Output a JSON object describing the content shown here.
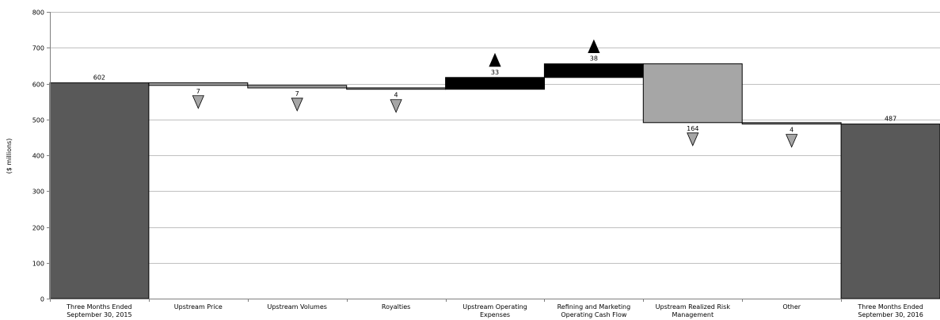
{
  "chart_data": {
    "type": "bar",
    "subtype": "waterfall",
    "title": "",
    "xlabel": "",
    "ylabel": "($ millions)",
    "ylim": [
      0,
      800
    ],
    "yticks": [
      0,
      100,
      200,
      300,
      400,
      500,
      600,
      700,
      800
    ],
    "grid": true,
    "legend": "none",
    "categories": [
      [
        "Three Months Ended",
        "September 30, 2015"
      ],
      [
        "Upstream Price"
      ],
      [
        "Upstream Volumes"
      ],
      [
        "Royalties"
      ],
      [
        "Upstream Operating",
        "Expenses"
      ],
      [
        "Refining and Marketing",
        "Operating Cash Flow"
      ],
      [
        "Upstream Realized Risk",
        "Management"
      ],
      [
        "Other"
      ],
      [
        "Three Months Ended",
        "September 30, 2016"
      ]
    ],
    "bars": [
      {
        "kind": "total",
        "start": 0,
        "end": 602,
        "label": "602",
        "indicator": "none"
      },
      {
        "kind": "change",
        "start": 602,
        "end": 595,
        "label": "7",
        "indicator": "down"
      },
      {
        "kind": "change",
        "start": 595,
        "end": 588,
        "label": "7",
        "indicator": "down"
      },
      {
        "kind": "change",
        "start": 588,
        "end": 584,
        "label": "4",
        "indicator": "down"
      },
      {
        "kind": "change",
        "start": 584,
        "end": 617,
        "label": "33",
        "indicator": "up"
      },
      {
        "kind": "change",
        "start": 617,
        "end": 655,
        "label": "38",
        "indicator": "up"
      },
      {
        "kind": "change",
        "start": 655,
        "end": 491,
        "label": "164",
        "indicator": "down"
      },
      {
        "kind": "change",
        "start": 491,
        "end": 487,
        "label": "4",
        "indicator": "down"
      },
      {
        "kind": "total",
        "start": 0,
        "end": 487,
        "label": "487",
        "indicator": "none"
      }
    ],
    "colors": {
      "total": "#595959",
      "increase": "#000000",
      "decrease": "#a6a6a6",
      "grid": "#c0c0c0",
      "axis": "#808080"
    }
  }
}
